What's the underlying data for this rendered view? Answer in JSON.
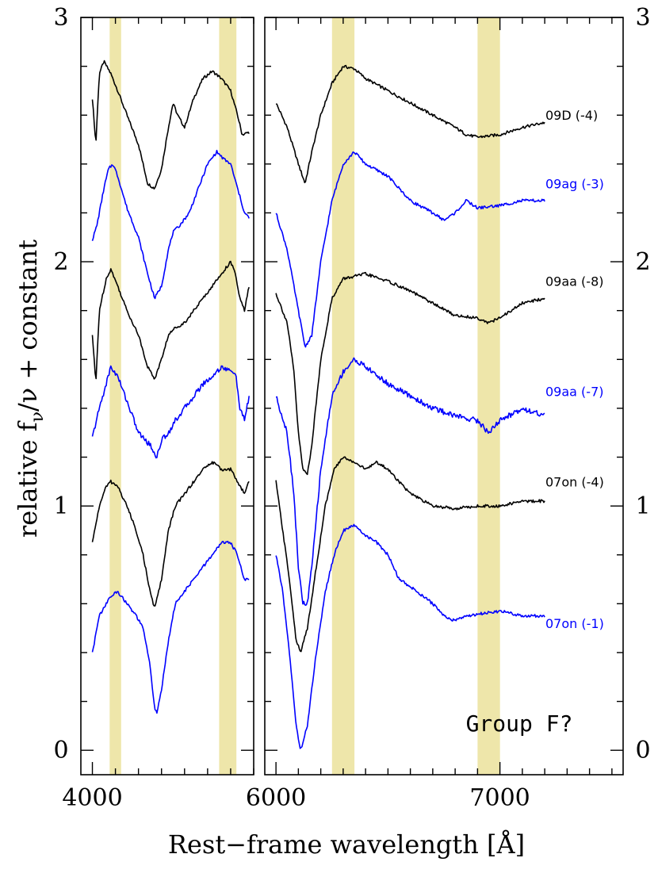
{
  "chart_data": {
    "type": "line",
    "title": "",
    "xlabel": "Rest−frame wavelength [Å]",
    "ylabel_parts": {
      "main": "relative f",
      "sub1": "ν",
      "mid": "/ν",
      "tail": " + constant"
    },
    "annotation": "Group F?",
    "ylim": [
      -0.1,
      3.0
    ],
    "yticks": [
      0,
      1,
      2,
      3
    ],
    "panels": [
      {
        "name": "left",
        "xlim": [
          3950,
          4700
        ],
        "xtick_labels": [
          {
            "x": 4000,
            "label": "4000"
          }
        ],
        "minor_step": 100
      },
      {
        "name": "right",
        "xlim": [
          5950,
          7550
        ],
        "xtick_labels": [
          {
            "x": 6000,
            "label": "6000"
          },
          {
            "x": 7000,
            "label": "7000"
          }
        ],
        "minor_step": 100
      }
    ],
    "bands": [
      [
        4075,
        4125
      ],
      [
        4550,
        4625
      ],
      [
        6250,
        6350
      ],
      [
        6900,
        7000
      ]
    ],
    "band_color": "#eee6aa",
    "series": [
      {
        "name": "09D (-4)",
        "color": "#000000",
        "offset": 2.55,
        "label_y": 2.6,
        "left": [
          [
            4000,
            0.12
          ],
          [
            4015,
            -0.07
          ],
          [
            4030,
            0.22
          ],
          [
            4050,
            0.27
          ],
          [
            4080,
            0.22
          ],
          [
            4110,
            0.15
          ],
          [
            4150,
            0.05
          ],
          [
            4200,
            -0.07
          ],
          [
            4240,
            -0.23
          ],
          [
            4270,
            -0.25
          ],
          [
            4300,
            -0.17
          ],
          [
            4330,
            0.0
          ],
          [
            4350,
            0.1
          ],
          [
            4370,
            0.05
          ],
          [
            4400,
            0.0
          ],
          [
            4440,
            0.12
          ],
          [
            4480,
            0.2
          ],
          [
            4520,
            0.23
          ],
          [
            4560,
            0.2
          ],
          [
            4600,
            0.15
          ],
          [
            4630,
            0.05
          ],
          [
            4650,
            -0.03
          ],
          [
            4680,
            -0.02
          ]
        ],
        "right": [
          [
            6000,
            0.1
          ],
          [
            6050,
            0.0
          ],
          [
            6100,
            -0.15
          ],
          [
            6130,
            -0.23
          ],
          [
            6160,
            -0.1
          ],
          [
            6200,
            0.05
          ],
          [
            6250,
            0.18
          ],
          [
            6300,
            0.25
          ],
          [
            6350,
            0.24
          ],
          [
            6400,
            0.2
          ],
          [
            6500,
            0.15
          ],
          [
            6600,
            0.1
          ],
          [
            6700,
            0.05
          ],
          [
            6800,
            0.0
          ],
          [
            6850,
            -0.03
          ],
          [
            6900,
            -0.04
          ],
          [
            7000,
            -0.03
          ],
          [
            7100,
            0.0
          ],
          [
            7200,
            0.02
          ]
        ]
      },
      {
        "name": "09ag (-3)",
        "color": "#0000ff",
        "offset": 2.2,
        "label_y": 2.32,
        "left": [
          [
            4000,
            -0.11
          ],
          [
            4020,
            -0.05
          ],
          [
            4050,
            0.1
          ],
          [
            4070,
            0.18
          ],
          [
            4090,
            0.2
          ],
          [
            4110,
            0.15
          ],
          [
            4150,
            0.02
          ],
          [
            4200,
            -0.1
          ],
          [
            4240,
            -0.25
          ],
          [
            4270,
            -0.35
          ],
          [
            4300,
            -0.3
          ],
          [
            4330,
            -0.15
          ],
          [
            4350,
            -0.08
          ],
          [
            4380,
            -0.05
          ],
          [
            4420,
            0.0
          ],
          [
            4460,
            0.1
          ],
          [
            4500,
            0.2
          ],
          [
            4540,
            0.25
          ],
          [
            4570,
            0.22
          ],
          [
            4600,
            0.2
          ],
          [
            4630,
            0.1
          ],
          [
            4660,
            0.0
          ],
          [
            4680,
            -0.02
          ]
        ],
        "right": [
          [
            6000,
            0.0
          ],
          [
            6050,
            -0.15
          ],
          [
            6100,
            -0.4
          ],
          [
            6130,
            -0.55
          ],
          [
            6160,
            -0.5
          ],
          [
            6200,
            -0.2
          ],
          [
            6250,
            0.05
          ],
          [
            6300,
            0.2
          ],
          [
            6350,
            0.25
          ],
          [
            6400,
            0.2
          ],
          [
            6500,
            0.15
          ],
          [
            6600,
            0.05
          ],
          [
            6700,
            0.0
          ],
          [
            6750,
            -0.03
          ],
          [
            6800,
            0.0
          ],
          [
            6850,
            0.05
          ],
          [
            6900,
            0.02
          ],
          [
            7000,
            0.03
          ],
          [
            7100,
            0.05
          ],
          [
            7200,
            0.05
          ]
        ]
      },
      {
        "name": "09aa (-8)",
        "color": "#000000",
        "offset": 1.85,
        "label_y": 1.92,
        "left": [
          [
            4000,
            -0.15
          ],
          [
            4015,
            -0.35
          ],
          [
            4030,
            -0.05
          ],
          [
            4060,
            0.08
          ],
          [
            4080,
            0.12
          ],
          [
            4110,
            0.05
          ],
          [
            4150,
            -0.05
          ],
          [
            4200,
            -0.15
          ],
          [
            4240,
            -0.28
          ],
          [
            4270,
            -0.33
          ],
          [
            4300,
            -0.25
          ],
          [
            4330,
            -0.15
          ],
          [
            4360,
            -0.12
          ],
          [
            4400,
            -0.1
          ],
          [
            4440,
            -0.05
          ],
          [
            4480,
            0.0
          ],
          [
            4520,
            0.05
          ],
          [
            4560,
            0.1
          ],
          [
            4600,
            0.15
          ],
          [
            4620,
            0.1
          ],
          [
            4640,
            0.0
          ],
          [
            4660,
            -0.05
          ],
          [
            4680,
            0.05
          ]
        ],
        "right": [
          [
            6000,
            0.02
          ],
          [
            6050,
            -0.1
          ],
          [
            6080,
            -0.3
          ],
          [
            6100,
            -0.55
          ],
          [
            6120,
            -0.7
          ],
          [
            6140,
            -0.72
          ],
          [
            6160,
            -0.6
          ],
          [
            6200,
            -0.25
          ],
          [
            6250,
            0.0
          ],
          [
            6300,
            0.08
          ],
          [
            6400,
            0.1
          ],
          [
            6500,
            0.07
          ],
          [
            6600,
            0.03
          ],
          [
            6700,
            -0.02
          ],
          [
            6800,
            -0.07
          ],
          [
            6900,
            -0.08
          ],
          [
            6950,
            -0.1
          ],
          [
            7000,
            -0.08
          ],
          [
            7100,
            -0.02
          ],
          [
            7200,
            0.0
          ]
        ]
      },
      {
        "name": "09aa (-7)",
        "color": "#0000ff",
        "offset": 1.35,
        "label_y": 1.47,
        "left": [
          [
            4000,
            -0.07
          ],
          [
            4030,
            0.05
          ],
          [
            4060,
            0.15
          ],
          [
            4080,
            0.22
          ],
          [
            4110,
            0.18
          ],
          [
            4150,
            0.08
          ],
          [
            4200,
            -0.05
          ],
          [
            4250,
            -0.1
          ],
          [
            4280,
            -0.15
          ],
          [
            4300,
            -0.08
          ],
          [
            4330,
            -0.05
          ],
          [
            4360,
            0.0
          ],
          [
            4400,
            0.05
          ],
          [
            4440,
            0.1
          ],
          [
            4480,
            0.15
          ],
          [
            4520,
            0.18
          ],
          [
            4560,
            0.22
          ],
          [
            4600,
            0.2
          ],
          [
            4620,
            0.2
          ],
          [
            4640,
            0.05
          ],
          [
            4660,
            0.0
          ],
          [
            4680,
            0.1
          ]
        ],
        "right": [
          [
            6000,
            0.1
          ],
          [
            6050,
            -0.05
          ],
          [
            6080,
            -0.3
          ],
          [
            6100,
            -0.6
          ],
          [
            6120,
            -0.75
          ],
          [
            6140,
            -0.75
          ],
          [
            6160,
            -0.6
          ],
          [
            6200,
            -0.2
          ],
          [
            6250,
            0.1
          ],
          [
            6300,
            0.2
          ],
          [
            6350,
            0.25
          ],
          [
            6400,
            0.22
          ],
          [
            6500,
            0.15
          ],
          [
            6600,
            0.1
          ],
          [
            6700,
            0.05
          ],
          [
            6800,
            0.02
          ],
          [
            6900,
            0.0
          ],
          [
            6950,
            -0.05
          ],
          [
            7000,
            0.0
          ],
          [
            7100,
            0.05
          ],
          [
            7200,
            0.02
          ]
        ]
      },
      {
        "name": "07on (-4)",
        "color": "#000000",
        "offset": 1.0,
        "label_y": 1.1,
        "left": [
          [
            4000,
            -0.15
          ],
          [
            4030,
            0.0
          ],
          [
            4060,
            0.08
          ],
          [
            4080,
            0.1
          ],
          [
            4110,
            0.08
          ],
          [
            4150,
            0.0
          ],
          [
            4190,
            -0.1
          ],
          [
            4220,
            -0.2
          ],
          [
            4250,
            -0.35
          ],
          [
            4270,
            -0.42
          ],
          [
            4300,
            -0.3
          ],
          [
            4330,
            -0.1
          ],
          [
            4360,
            0.0
          ],
          [
            4400,
            0.05
          ],
          [
            4440,
            0.1
          ],
          [
            4480,
            0.15
          ],
          [
            4520,
            0.18
          ],
          [
            4560,
            0.15
          ],
          [
            4600,
            0.15
          ],
          [
            4630,
            0.1
          ],
          [
            4660,
            0.05
          ],
          [
            4680,
            0.1
          ]
        ],
        "right": [
          [
            6000,
            0.1
          ],
          [
            6030,
            -0.1
          ],
          [
            6060,
            -0.3
          ],
          [
            6090,
            -0.55
          ],
          [
            6110,
            -0.6
          ],
          [
            6140,
            -0.5
          ],
          [
            6180,
            -0.25
          ],
          [
            6220,
            0.0
          ],
          [
            6260,
            0.15
          ],
          [
            6300,
            0.2
          ],
          [
            6350,
            0.18
          ],
          [
            6400,
            0.15
          ],
          [
            6450,
            0.18
          ],
          [
            6500,
            0.15
          ],
          [
            6550,
            0.1
          ],
          [
            6600,
            0.05
          ],
          [
            6700,
            0.0
          ],
          [
            6800,
            -0.01
          ],
          [
            6900,
            0.0
          ],
          [
            7000,
            0.0
          ],
          [
            7100,
            0.02
          ],
          [
            7200,
            0.02
          ]
        ]
      },
      {
        "name": "07on (-1)",
        "color": "#0000ff",
        "offset": 0.55,
        "label_y": 0.52,
        "left": [
          [
            4000,
            -0.15
          ],
          [
            4030,
            0.0
          ],
          [
            4060,
            0.05
          ],
          [
            4080,
            0.08
          ],
          [
            4110,
            0.1
          ],
          [
            4150,
            0.05
          ],
          [
            4190,
            0.0
          ],
          [
            4220,
            -0.05
          ],
          [
            4250,
            -0.2
          ],
          [
            4270,
            -0.38
          ],
          [
            4280,
            -0.4
          ],
          [
            4300,
            -0.3
          ],
          [
            4330,
            -0.1
          ],
          [
            4360,
            0.05
          ],
          [
            4400,
            0.1
          ],
          [
            4440,
            0.15
          ],
          [
            4480,
            0.2
          ],
          [
            4520,
            0.25
          ],
          [
            4560,
            0.3
          ],
          [
            4600,
            0.3
          ],
          [
            4630,
            0.25
          ],
          [
            4660,
            0.15
          ],
          [
            4680,
            0.15
          ]
        ],
        "right": [
          [
            6000,
            0.25
          ],
          [
            6030,
            0.1
          ],
          [
            6060,
            -0.15
          ],
          [
            6090,
            -0.45
          ],
          [
            6110,
            -0.55
          ],
          [
            6140,
            -0.45
          ],
          [
            6180,
            -0.15
          ],
          [
            6220,
            0.1
          ],
          [
            6260,
            0.25
          ],
          [
            6300,
            0.35
          ],
          [
            6350,
            0.37
          ],
          [
            6400,
            0.33
          ],
          [
            6450,
            0.3
          ],
          [
            6500,
            0.25
          ],
          [
            6550,
            0.15
          ],
          [
            6600,
            0.12
          ],
          [
            6700,
            0.05
          ],
          [
            6750,
            0.0
          ],
          [
            6800,
            -0.02
          ],
          [
            6850,
            0.0
          ],
          [
            7000,
            0.02
          ],
          [
            7100,
            0.0
          ],
          [
            7200,
            0.0
          ]
        ]
      }
    ]
  }
}
